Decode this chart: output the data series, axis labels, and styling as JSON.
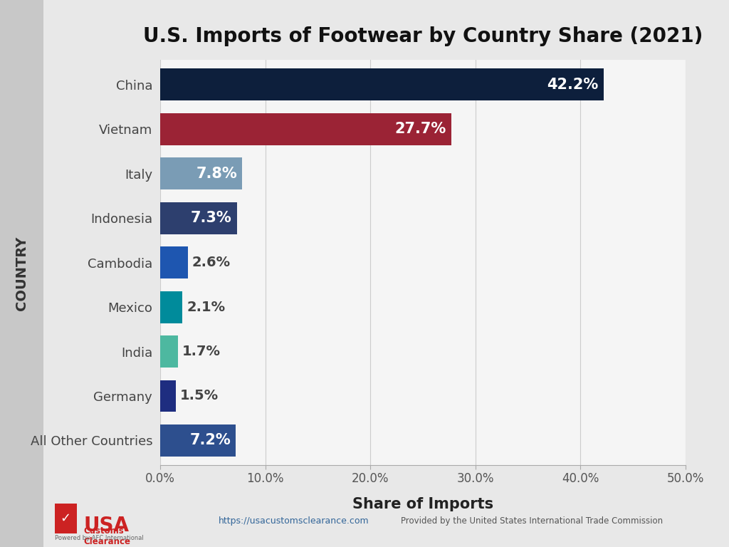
{
  "title": "U.S. Imports of Footwear by Country Share (2021)",
  "categories": [
    "China",
    "Vietnam",
    "Italy",
    "Indonesia",
    "Cambodia",
    "Mexico",
    "India",
    "Germany",
    "All Other Countries"
  ],
  "values": [
    42.2,
    27.7,
    7.8,
    7.3,
    2.6,
    2.1,
    1.7,
    1.5,
    7.2
  ],
  "labels": [
    "42.2%",
    "27.7%",
    "7.8%",
    "7.3%",
    "2.6%",
    "2.1%",
    "1.7%",
    "1.5%",
    "7.2%"
  ],
  "colors": [
    "#0d1f3c",
    "#9b2335",
    "#7a9cb5",
    "#2d3f6e",
    "#1e56b0",
    "#008b9b",
    "#4db8a0",
    "#1e2d80",
    "#2d4f8e"
  ],
  "inside_label": [
    true,
    true,
    true,
    true,
    false,
    false,
    false,
    false,
    true
  ],
  "xlabel": "Share of Imports",
  "ylabel": "COUNTRY",
  "xlim": [
    0,
    50
  ],
  "xticks": [
    0,
    10,
    20,
    30,
    40,
    50
  ],
  "xtick_labels": [
    "0.0%",
    "10.0%",
    "20.0%",
    "30.0%",
    "40.0%",
    "50.0%"
  ],
  "background_color": "#e8e8e8",
  "left_strip_color": "#c8c8c8",
  "plot_bg_color": "#f5f5f5",
  "title_fontsize": 20,
  "label_fontsize": 13,
  "bar_label_fontsize_large": 15,
  "bar_label_fontsize_small": 14,
  "axis_fontsize": 12,
  "bar_height": 0.72,
  "footer_url": "https://usacustomsclearance.com",
  "footer_credit": "Provided by the United States International Trade Commission"
}
